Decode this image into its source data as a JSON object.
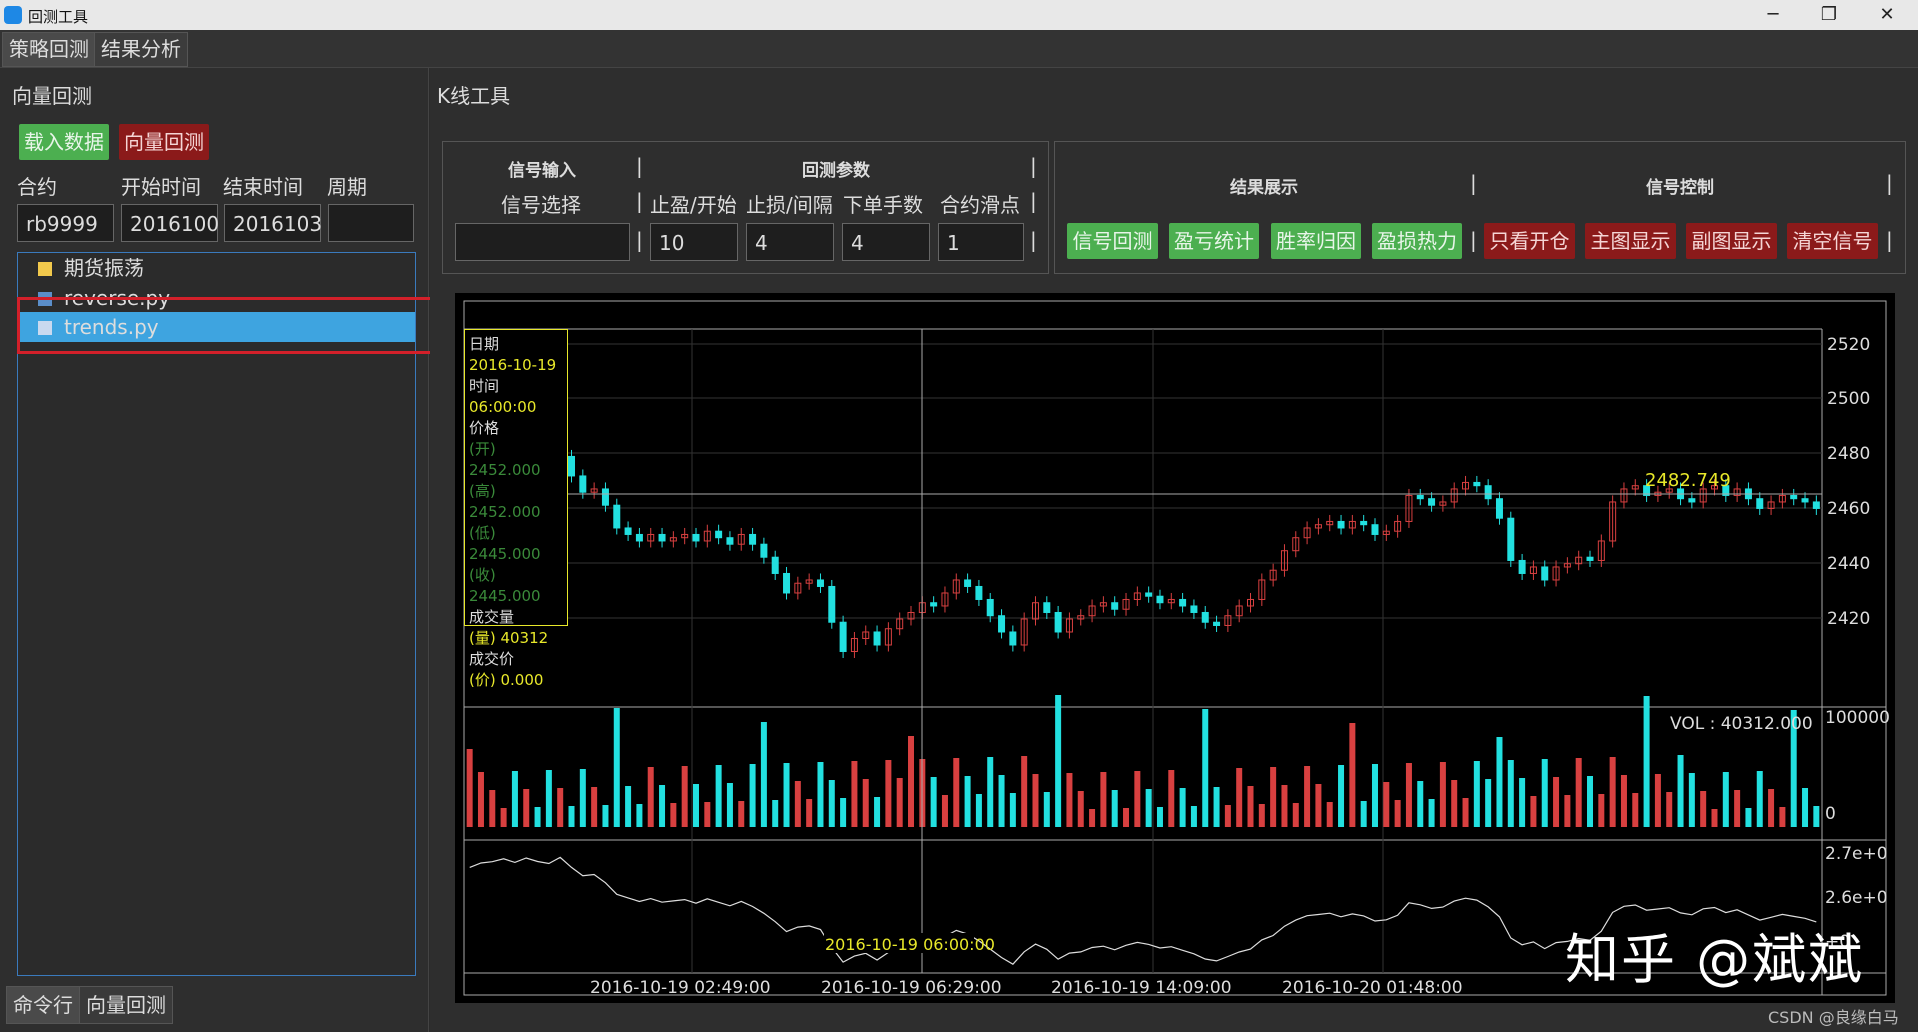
{
  "window": {
    "title": "回测工具",
    "minimize": "─",
    "maximize": "❐",
    "close": "✕"
  },
  "menu_tabs": [
    "策略回测",
    "结果分析"
  ],
  "left": {
    "section_title": "向量回测",
    "load_button": "载入数据",
    "vector_button": "向量回测",
    "field_labels": [
      "合约",
      "开始时间",
      "结束时间",
      "周期"
    ],
    "field_values": [
      "rb9999",
      "2016100",
      "2016103",
      ""
    ],
    "tree": {
      "folder": "期货振荡",
      "files": [
        "reverse.py",
        "trends.py"
      ],
      "selected": "trends.py"
    },
    "bottom_tabs": [
      "命令行",
      "向量回测"
    ]
  },
  "right": {
    "section_title": "K线工具",
    "signal_input": {
      "header": "信号输入",
      "label": "信号选择",
      "value": ""
    },
    "backtest_params": {
      "header": "回测参数",
      "labels": [
        "止盈/开始",
        "止损/间隔",
        "下单手数",
        "合约滑点"
      ],
      "values": [
        "10",
        "4",
        "4",
        "1"
      ]
    },
    "result_display": {
      "header": "结果展示",
      "buttons": [
        "信号回测",
        "盈亏统计",
        "胜率归因",
        "盈损热力"
      ]
    },
    "signal_control": {
      "header": "信号控制",
      "buttons": [
        "只看开仓",
        "主图显示",
        "副图显示",
        "清空信号"
      ]
    }
  },
  "chart": {
    "info_panel": {
      "date_label": "日期",
      "date": "2016-10-19",
      "time_label": "时间",
      "time": "06:00:00",
      "price_label": "价格",
      "open": "(开) 2452.000",
      "high": "(高) 2452.000",
      "low": "(低) 2445.000",
      "close": "(收) 2445.000",
      "volume_label": "成交量",
      "volume": "(量) 40312",
      "deal_label": "成交价",
      "deal": "(价) 0.000"
    },
    "price_ticks": [
      "2520",
      "2500",
      "2480",
      "2460",
      "2440",
      "2420"
    ],
    "last_price": "2482.749",
    "vol_label": "VOL : 40312.000",
    "vol_ticks": [
      "100000",
      "0"
    ],
    "sub_ticks": [
      "2.7e+0",
      "2.6e+0",
      "+0"
    ],
    "crosshair_time": "2016-10-19 06:00:00",
    "x_ticks": [
      "2016-10-19 02:49:00",
      "2016-10-19 06:29:00",
      "2016-10-19 14:09:00",
      "2016-10-20 01:48:00"
    ]
  },
  "chart_data": {
    "type": "line",
    "title": "",
    "price_axis_range": [
      2420,
      2520
    ],
    "price_close_series": [
      2486,
      2489,
      2490,
      2492,
      2490,
      2493,
      2491,
      2490,
      2494,
      2488,
      2483,
      2484,
      2479,
      2472,
      2470,
      2468,
      2470,
      2468,
      2469,
      2470,
      2468,
      2471,
      2469,
      2467,
      2470,
      2467,
      2463,
      2458,
      2452,
      2455,
      2456,
      2454,
      2443,
      2434,
      2438,
      2440,
      2436,
      2441,
      2444,
      2446,
      2449,
      2448,
      2452,
      2456,
      2454,
      2450,
      2445,
      2440,
      2436,
      2444,
      2449,
      2446,
      2440,
      2444,
      2445,
      2448,
      2449,
      2447,
      2450,
      2452,
      2451,
      2449,
      2450,
      2448,
      2446,
      2443,
      2442,
      2445,
      2448,
      2450,
      2456,
      2459,
      2465,
      2469,
      2472,
      2473,
      2474,
      2472,
      2474,
      2473,
      2470,
      2471,
      2474,
      2482,
      2481,
      2479,
      2480,
      2484,
      2486,
      2485,
      2481,
      2475,
      2462,
      2458,
      2460,
      2456,
      2460,
      2461,
      2463,
      2462,
      2468,
      2480,
      2484,
      2485,
      2482,
      2483,
      2484,
      2481,
      2480,
      2484,
      2485,
      2482,
      2484,
      2481,
      2478,
      2480,
      2482,
      2481,
      2480,
      2478
    ],
    "volume_axis_range": [
      0,
      100000
    ],
    "volume_current": 40312
  },
  "watermark": "知乎 @斌斌",
  "credit": "CSDN @良缘白马"
}
